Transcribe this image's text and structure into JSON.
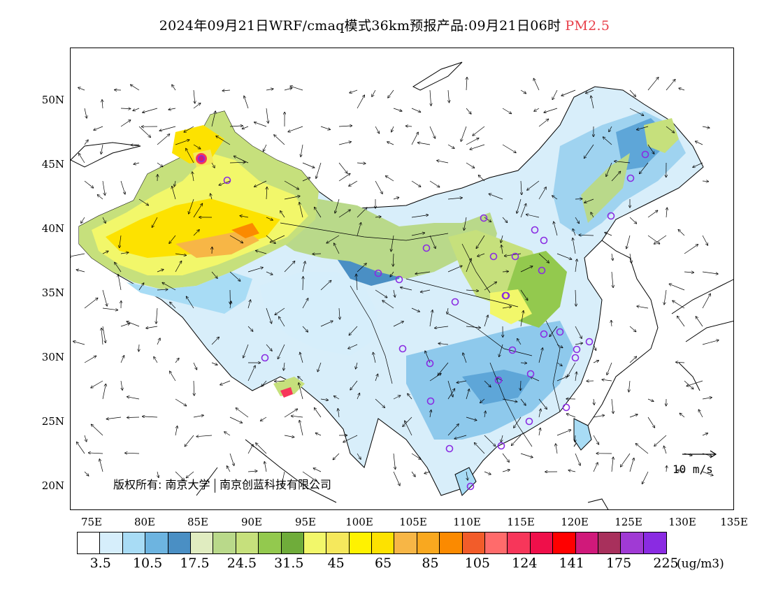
{
  "title": {
    "main": "2024年09月21日WRF/cmaq模式36km预报产品:09月21日06时",
    "species": "PM2.5",
    "species_color": "#e8404a"
  },
  "axes": {
    "lat_labels": [
      "50N",
      "45N",
      "40N",
      "35N",
      "30N",
      "25N",
      "20N"
    ],
    "lon_labels": [
      "75E",
      "80E",
      "85E",
      "90E",
      "95E",
      "100E",
      "105E",
      "110E",
      "115E",
      "120E",
      "125E",
      "130E",
      "135E"
    ]
  },
  "copyright": {
    "prefix": "版权所有:",
    "org1": "南京大学",
    "org2": "南京创蓝科技有限公司"
  },
  "wind_reference": {
    "label": "10 m/s"
  },
  "legend": {
    "colors": [
      "#ffffff",
      "#d6eefb",
      "#a8dcf5",
      "#6db4e0",
      "#4a8fc4",
      "#e0ecc0",
      "#b9d98a",
      "#c6e07c",
      "#93c94e",
      "#6fac3a",
      "#f2f76a",
      "#f5e85c",
      "#fff200",
      "#fde200",
      "#f7b646",
      "#f9a81f",
      "#fb8a00",
      "#f25c2a",
      "#ff6b6b",
      "#f7365a",
      "#ef0f4a",
      "#ff0000",
      "#d0197a",
      "#a8305c",
      "#a03ad4",
      "#8a2be2"
    ],
    "labels": [
      "3.5",
      "10.5",
      "17.5",
      "24.5",
      "31.5",
      "45",
      "65",
      "85",
      "105",
      "124",
      "141",
      "175",
      "225"
    ],
    "unit": "(ug/m3)"
  }
}
